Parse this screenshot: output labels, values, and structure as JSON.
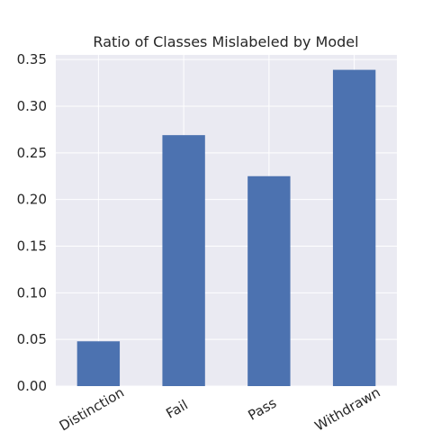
{
  "chart_data": {
    "type": "bar",
    "title": "Ratio of Classes Mislabeled by Model",
    "xlabel": "",
    "ylabel": "",
    "categories": [
      "Distinction",
      "Fail",
      "Pass",
      "Withdrawn"
    ],
    "values": [
      0.048,
      0.269,
      0.225,
      0.339
    ],
    "ylim": [
      0,
      0.355
    ],
    "yticks": [
      "0.00",
      "0.05",
      "0.10",
      "0.15",
      "0.20",
      "0.25",
      "0.30",
      "0.35"
    ],
    "grid": true,
    "legend": "none",
    "colors": {
      "bar": "#4c72b0",
      "background": "#eaeaf2",
      "grid": "#ffffff"
    }
  }
}
